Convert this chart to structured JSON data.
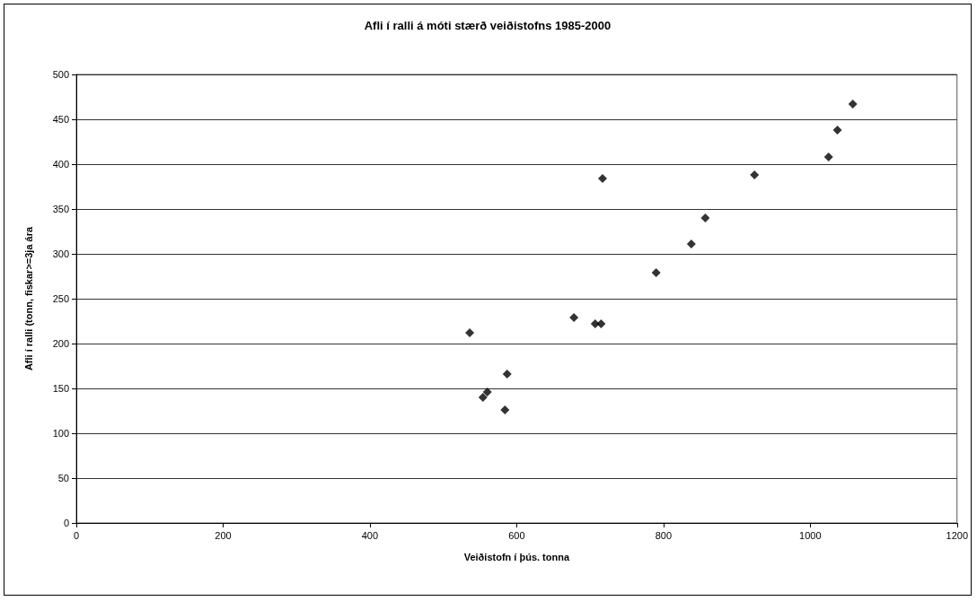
{
  "chart_data": {
    "type": "scatter",
    "title": "Afli í ralli á móti stærð veiðistofns 1985-2000",
    "xlabel": "Veiðistofn í þús. tonna",
    "ylabel": "Afli í ralli (tonn, fiskar>=3ja ára",
    "x": [
      536,
      554,
      560,
      584,
      587,
      678,
      707,
      715,
      717,
      790,
      838,
      857,
      924,
      1025,
      1037,
      1058
    ],
    "values": [
      212,
      140,
      146,
      126,
      166,
      229,
      222,
      222,
      384,
      279,
      311,
      340,
      388,
      408,
      438,
      467
    ],
    "color": "#000000",
    "marker": "diamond",
    "grid": "y",
    "xlim": [
      0,
      1200
    ],
    "xticks": [
      0,
      200,
      400,
      600,
      800,
      1000,
      1200
    ],
    "ylim": [
      0,
      500
    ],
    "yticks": [
      0,
      50,
      100,
      150,
      200,
      250,
      300,
      350,
      400,
      450,
      500
    ]
  }
}
